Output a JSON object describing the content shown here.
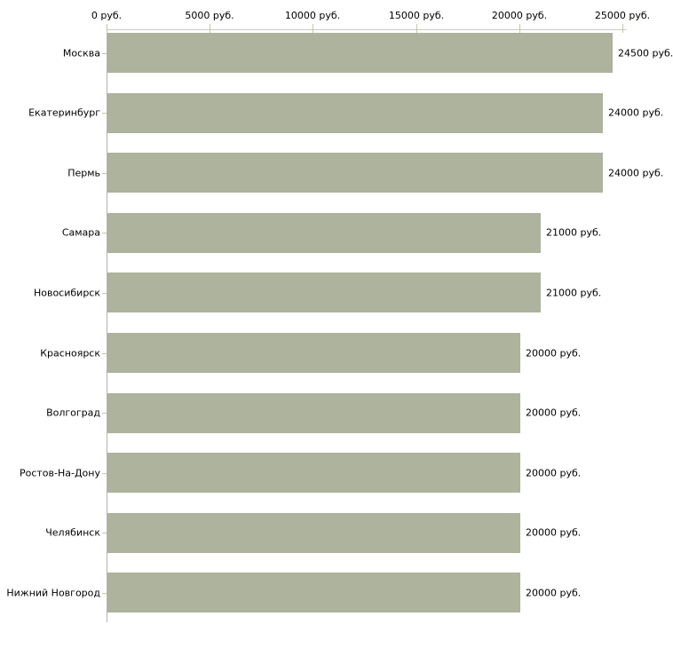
{
  "chart_data": {
    "type": "bar",
    "orientation": "horizontal",
    "title": "",
    "xlabel": "",
    "ylabel": "",
    "unit": "руб.",
    "xlim": [
      0,
      25000
    ],
    "grid": false,
    "legend": null,
    "categories": [
      "Москва",
      "Екатеринбург",
      "Пермь",
      "Самара",
      "Новосибирск",
      "Красноярск",
      "Волгоград",
      "Ростов-На-Дону",
      "Челябинск",
      "Нижний Новгород"
    ],
    "values": [
      24500,
      24000,
      24000,
      21000,
      21000,
      20000,
      20000,
      20000,
      20000,
      20000
    ],
    "value_labels": [
      "24500 руб.",
      "24000 руб.",
      "24000 руб.",
      "21000 руб.",
      "21000 руб.",
      "20000 руб.",
      "20000 руб.",
      "20000 руб.",
      "20000 руб.",
      "20000 руб."
    ],
    "x_tick_values": [
      0,
      5000,
      10000,
      15000,
      20000,
      25000
    ],
    "x_tick_labels": [
      "0 руб.",
      "5000 руб.",
      "10000 руб.",
      "15000 руб.",
      "20000 руб.",
      "25000 руб."
    ],
    "colors": {
      "bar": "#adb39c",
      "axis_line": "#cbcbcb",
      "tick_mark": "#c6c69c",
      "y_axis_line": "#b3b3b3",
      "text": "#000000",
      "background": "#ffffff"
    }
  }
}
